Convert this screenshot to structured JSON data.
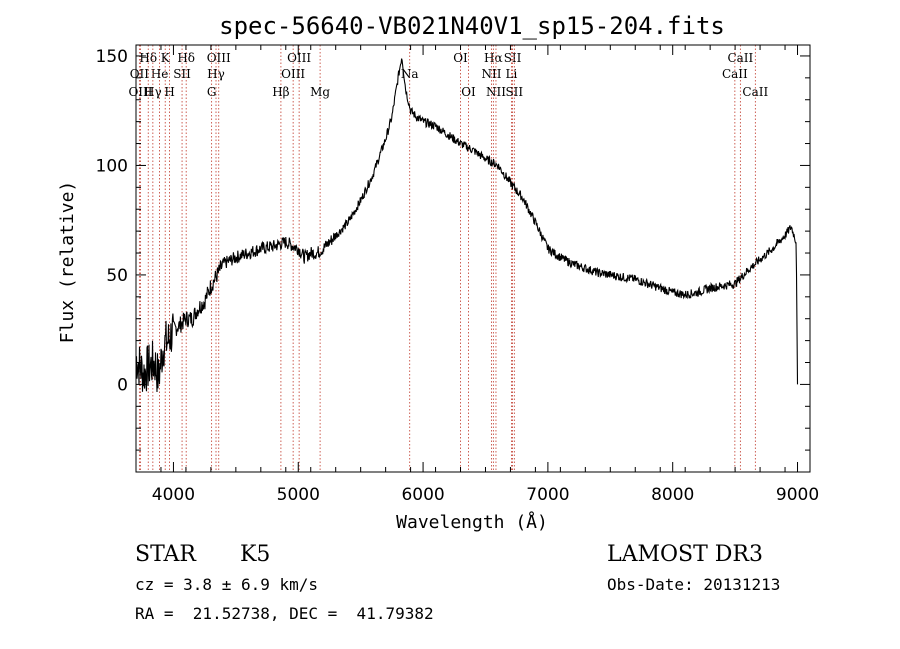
{
  "chart_data": {
    "type": "line",
    "title": "spec-56640-VB021N40V1_sp15-204.fits",
    "xlabel": "Wavelength (Å)",
    "ylabel": "Flux (relative)",
    "xlim": [
      3700,
      9100
    ],
    "ylim": [
      -40,
      155
    ],
    "xticks": [
      4000,
      5000,
      6000,
      7000,
      8000,
      9000
    ],
    "yticks": [
      0,
      50,
      100,
      150
    ],
    "x_tick_labels": [
      "4000",
      "5000",
      "6000",
      "7000",
      "8000",
      "9000"
    ],
    "y_tick_labels": [
      "0",
      "50",
      "100",
      "150"
    ],
    "series": [
      {
        "name": "spectrum",
        "color": "#000000",
        "points": [
          [
            3700,
            12
          ],
          [
            3760,
            5
          ],
          [
            3800,
            8
          ],
          [
            3850,
            10
          ],
          [
            3880,
            3
          ],
          [
            3920,
            18
          ],
          [
            3960,
            20
          ],
          [
            4000,
            25
          ],
          [
            4050,
            27
          ],
          [
            4100,
            30
          ],
          [
            4150,
            30
          ],
          [
            4200,
            35
          ],
          [
            4250,
            38
          ],
          [
            4300,
            45
          ],
          [
            4350,
            50
          ],
          [
            4400,
            55
          ],
          [
            4500,
            58
          ],
          [
            4600,
            60
          ],
          [
            4700,
            62
          ],
          [
            4800,
            63
          ],
          [
            4900,
            65
          ],
          [
            5000,
            62
          ],
          [
            5050,
            58
          ],
          [
            5100,
            60
          ],
          [
            5150,
            60
          ],
          [
            5200,
            62
          ],
          [
            5300,
            68
          ],
          [
            5400,
            74
          ],
          [
            5500,
            84
          ],
          [
            5600,
            96
          ],
          [
            5700,
            112
          ],
          [
            5750,
            122
          ],
          [
            5800,
            140
          ],
          [
            5830,
            150
          ],
          [
            5860,
            135
          ],
          [
            5900,
            125
          ],
          [
            5950,
            122
          ],
          [
            6000,
            120
          ],
          [
            6050,
            119
          ],
          [
            6100,
            118
          ],
          [
            6200,
            114
          ],
          [
            6300,
            110
          ],
          [
            6400,
            107
          ],
          [
            6500,
            103
          ],
          [
            6600,
            100
          ],
          [
            6700,
            92
          ],
          [
            6800,
            85
          ],
          [
            6900,
            74
          ],
          [
            7000,
            62
          ],
          [
            7100,
            58
          ],
          [
            7200,
            55
          ],
          [
            7300,
            53
          ],
          [
            7400,
            51
          ],
          [
            7500,
            50
          ],
          [
            7600,
            49
          ],
          [
            7700,
            48
          ],
          [
            7800,
            46
          ],
          [
            7900,
            44
          ],
          [
            8000,
            42
          ],
          [
            8100,
            41
          ],
          [
            8200,
            42
          ],
          [
            8300,
            44
          ],
          [
            8400,
            45
          ],
          [
            8500,
            46
          ],
          [
            8600,
            52
          ],
          [
            8700,
            57
          ],
          [
            8800,
            62
          ],
          [
            8900,
            68
          ],
          [
            8950,
            72
          ],
          [
            8990,
            65
          ],
          [
            9000,
            0
          ]
        ]
      }
    ],
    "lines": [
      {
        "label": "Hδ",
        "x": 3798,
        "row": 1
      },
      {
        "label": "OII",
        "x": 3727,
        "row": 2
      },
      {
        "label": "OIII",
        "x": 3736,
        "row": 3
      },
      {
        "label": "K",
        "x": 3934,
        "row": 1
      },
      {
        "label": "He",
        "x": 3889,
        "row": 2
      },
      {
        "label": "Hγ",
        "x": 3835,
        "row": 3
      },
      {
        "label": "Hδ",
        "x": 4102,
        "row": 1
      },
      {
        "label": "SII",
        "x": 4069,
        "row": 2
      },
      {
        "label": "H",
        "x": 3969,
        "row": 3
      },
      {
        "label": "OIII",
        "x": 4363,
        "row": 1
      },
      {
        "label": "Hγ",
        "x": 4341,
        "row": 2
      },
      {
        "label": "G",
        "x": 4306,
        "row": 3
      },
      {
        "label": "OIII",
        "x": 5007,
        "row": 1
      },
      {
        "label": "OIII",
        "x": 4959,
        "row": 2
      },
      {
        "label": "Hβ",
        "x": 4861,
        "row": 3
      },
      {
        "label": "Mg",
        "x": 5175,
        "row": 3
      },
      {
        "label": "Na",
        "x": 5893,
        "row": 2
      },
      {
        "label": "OI",
        "x": 6300,
        "row": 1
      },
      {
        "label": "OI",
        "x": 6364,
        "row": 3
      },
      {
        "label": "Hα",
        "x": 6563,
        "row": 1
      },
      {
        "label": "SII",
        "x": 6717,
        "row": 1
      },
      {
        "label": "NII",
        "x": 6548,
        "row": 2
      },
      {
        "label": "Li",
        "x": 6708,
        "row": 2
      },
      {
        "label": "NII",
        "x": 6584,
        "row": 3
      },
      {
        "label": "SII",
        "x": 6731,
        "row": 3
      },
      {
        "label": "CaII",
        "x": 8542,
        "row": 1
      },
      {
        "label": "CaII",
        "x": 8498,
        "row": 2
      },
      {
        "label": "CaII",
        "x": 8662,
        "row": 3
      }
    ],
    "annotations": {
      "class": "STAR",
      "subclass": "K5",
      "survey": "LAMOST DR3",
      "cz": "cz = 3.8 ± 6.9 km/s",
      "obs_date": "Obs-Date: 20131213",
      "coords": "RA =  21.52738, DEC =  41.79382"
    }
  }
}
